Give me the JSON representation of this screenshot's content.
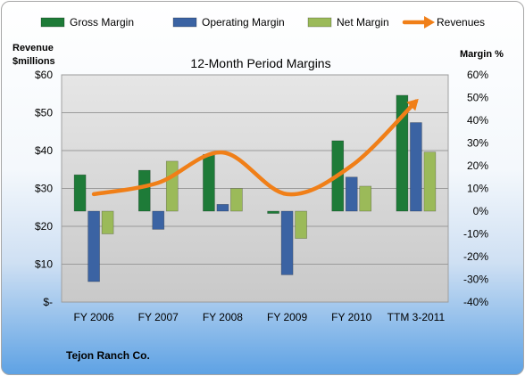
{
  "chart_data": {
    "type": "bar",
    "title": "12-Month Period Margins",
    "categories": [
      "FY 2006",
      "FY 2007",
      "FY 2008",
      "FY 2009",
      "FY 2010",
      "TTM 3-2011"
    ],
    "series": [
      {
        "name": "Gross Margin",
        "axis": "right",
        "kind": "bar",
        "color": "#1e7b38",
        "values": [
          16,
          18,
          25,
          -1,
          31,
          51
        ]
      },
      {
        "name": "Operating Margin",
        "axis": "right",
        "kind": "bar",
        "color": "#3b63a3",
        "values": [
          -31,
          -8,
          3,
          -28,
          15,
          39
        ]
      },
      {
        "name": "Net Margin",
        "axis": "right",
        "kind": "bar",
        "color": "#9bba59",
        "values": [
          -10,
          22,
          10,
          -12,
          11,
          26
        ]
      },
      {
        "name": "Revenues",
        "axis": "left",
        "kind": "line",
        "color": "#f07f18",
        "values": [
          28.5,
          31.5,
          39.5,
          28.5,
          36,
          53
        ]
      }
    ],
    "y_left": {
      "label_lines": [
        "Revenue",
        "$millions"
      ],
      "min": 0,
      "max": 60,
      "ticks": [
        "$-",
        "$10",
        "$20",
        "$30",
        "$40",
        "$50",
        "$60"
      ]
    },
    "y_right": {
      "label": "Margin %",
      "min": -40,
      "max": 60,
      "ticks": [
        "-40%",
        "-30%",
        "-20%",
        "-10%",
        "0%",
        "10%",
        "20%",
        "30%",
        "40%",
        "50%",
        "60%"
      ]
    },
    "legend_position": "top",
    "grid": true
  },
  "footer_text": "Tejon Ranch  Co."
}
